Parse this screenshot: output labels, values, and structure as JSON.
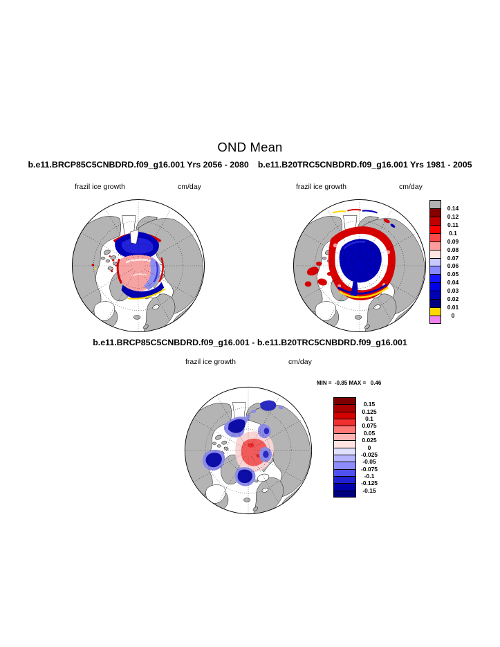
{
  "figure": {
    "title": "OND Mean",
    "header": {
      "case1": "b.e11.BRCP85C5CNBDRD.f09_g16.001  Yrs 2056 - 2080",
      "case2": "b.e11.B20TRC5CNBDRD.f09_g16.001  Yrs 1981 - 2005"
    },
    "panel1": {
      "field": "frazil ice growth",
      "units": "cm/day"
    },
    "panel2": {
      "field": "frazil ice growth",
      "units": "cm/day"
    },
    "diff": {
      "title": "b.e11.BRCP85C5CNBDRD.f09_g16.001 - b.e11.B20TRC5CNBDRD.f09_g16.001",
      "field": "frazil ice growth",
      "units": "cm/day",
      "stats": "MIN =  -0.85 MAX =   0.46"
    }
  },
  "colorbars": {
    "mean": {
      "labels": [
        "0.14",
        "0.12",
        "0.11",
        "0.1",
        "0.09",
        "0.08",
        "0.07",
        "0.06",
        "0.05",
        "0.04",
        "0.03",
        "0.02",
        "0.01",
        "0"
      ],
      "colors": [
        "#b4b4b4",
        "#860000",
        "#c00000",
        "#ff0000",
        "#ff4848",
        "#ff9c9c",
        "#ffe4e4",
        "#c8c8ff",
        "#8888ff",
        "#1414ff",
        "#0000e6",
        "#0000b4",
        "#000080",
        "#ffd700",
        "#ee82ee"
      ]
    },
    "diff": {
      "labels": [
        "0.15",
        "0.125",
        "0.1",
        "0.075",
        "0.05",
        "0.025",
        "0",
        "-0.025",
        "-0.05",
        "-0.075",
        "-0.1",
        "-0.125",
        "-0.15"
      ],
      "colors": [
        "#7c0000",
        "#a80000",
        "#d40000",
        "#f03030",
        "#ff7878",
        "#ffb4b4",
        "#ffe2e2",
        "#e0e0ff",
        "#b4b4ff",
        "#8c8cff",
        "#5050f0",
        "#2020d2",
        "#0000aa",
        "#000080"
      ]
    }
  },
  "chart_data": {
    "type": "heatmap",
    "subtype": "north-polar-stereographic map panels",
    "title": "OND Mean",
    "variable": "frazil ice growth",
    "units": "cm/day",
    "panels": [
      {
        "case": "b.e11.BRCP85C5CNBDRD.f09_g16.001",
        "period": "Yrs 2056 - 2080",
        "colorbar_levels": [
          0,
          0.01,
          0.02,
          0.03,
          0.04,
          0.05,
          0.06,
          0.07,
          0.08,
          0.09,
          0.1,
          0.11,
          0.12,
          0.14
        ],
        "pattern": "pink/light-red central Arctic basin with red rims, navy band north and south of center, yellow fringe toward Barents side"
      },
      {
        "case": "b.e11.B20TRC5CNBDRD.f09_g16.001",
        "period": "Yrs 1981 - 2005",
        "colorbar_levels": [
          0,
          0.01,
          0.02,
          0.03,
          0.04,
          0.05,
          0.06,
          0.07,
          0.08,
          0.09,
          0.1,
          0.11,
          0.12,
          0.14
        ],
        "pattern": "large dark-navy central basin ringed by white then patchy red, yellow arc south of basin, scattered red patches in Kara/Barents seas"
      },
      {
        "case": "b.e11.BRCP85C5CNBDRD.f09_g16.001 - b.e11.B20TRC5CNBDRD.f09_g16.001",
        "min": -0.85,
        "max": 0.46,
        "colorbar_levels": [
          -0.15,
          -0.125,
          -0.1,
          -0.075,
          -0.05,
          -0.025,
          0,
          0.025,
          0.05,
          0.075,
          0.1,
          0.125,
          0.15
        ],
        "pattern": "red/pink positive anomaly near pole surrounded by navy/periwinkle negative patches"
      }
    ],
    "legend_position": "right of panel"
  }
}
